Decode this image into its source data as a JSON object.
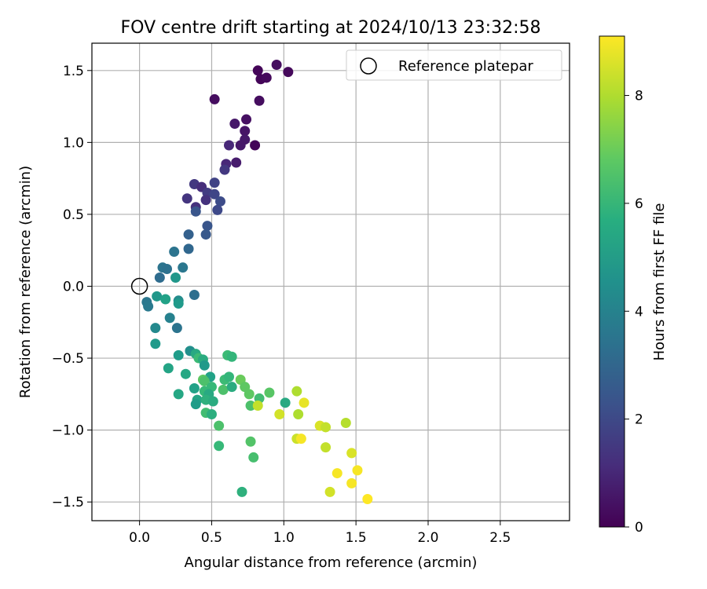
{
  "chart_data": {
    "type": "scatter",
    "title": "FOV centre drift starting at 2024/10/13 23:32:58",
    "xlabel": "Angular distance from reference (arcmin)",
    "ylabel": "Rotation from reference (arcmin)",
    "xlim": [
      -0.33,
      2.98
    ],
    "ylim": [
      -1.63,
      1.69
    ],
    "xticks": [
      0.0,
      0.5,
      1.0,
      1.5,
      2.0,
      2.5
    ],
    "xtick_labels": [
      "0.0",
      "0.5",
      "1.0",
      "1.5",
      "2.0",
      "2.5"
    ],
    "yticks": [
      -1.5,
      -1.0,
      -0.5,
      0.0,
      0.5,
      1.0,
      1.5
    ],
    "ytick_labels": [
      "−1.5",
      "−1.0",
      "−0.5",
      "0.0",
      "0.5",
      "1.0",
      "1.5"
    ],
    "grid": true,
    "legend": {
      "position": "top-right",
      "entries": [
        "Reference platepar"
      ]
    },
    "reference_point": {
      "x": 0.0,
      "y": 0.0,
      "marker": "open-circle"
    },
    "colorbar": {
      "label": "Hours from first FF file",
      "range": [
        0,
        9.1
      ],
      "ticks": [
        0,
        2,
        4,
        6,
        8
      ],
      "tick_labels": [
        "0",
        "2",
        "4",
        "6",
        "8"
      ],
      "colormap": "viridis"
    },
    "series": [
      {
        "points": [
          {
            "x": 0.82,
            "y": 1.5,
            "c": 0.1
          },
          {
            "x": 0.84,
            "y": 1.44,
            "c": 0.1
          },
          {
            "x": 0.88,
            "y": 1.45,
            "c": 0.2
          },
          {
            "x": 0.95,
            "y": 1.54,
            "c": 0.3
          },
          {
            "x": 1.03,
            "y": 1.49,
            "c": 0.2
          },
          {
            "x": 0.52,
            "y": 1.3,
            "c": 0.3
          },
          {
            "x": 0.83,
            "y": 1.29,
            "c": 0.3
          },
          {
            "x": 0.74,
            "y": 1.16,
            "c": 0.4
          },
          {
            "x": 0.66,
            "y": 1.13,
            "c": 0.6
          },
          {
            "x": 0.73,
            "y": 1.08,
            "c": 0.5
          },
          {
            "x": 0.73,
            "y": 1.02,
            "c": 0.6
          },
          {
            "x": 0.8,
            "y": 0.98,
            "c": 0.1
          },
          {
            "x": 0.7,
            "y": 0.98,
            "c": 0.6
          },
          {
            "x": 0.62,
            "y": 0.98,
            "c": 1.0
          },
          {
            "x": 0.6,
            "y": 0.85,
            "c": 1.0
          },
          {
            "x": 0.67,
            "y": 0.86,
            "c": 0.7
          },
          {
            "x": 0.59,
            "y": 0.81,
            "c": 1.5
          },
          {
            "x": 0.38,
            "y": 0.71,
            "c": 1.5
          },
          {
            "x": 0.43,
            "y": 0.69,
            "c": 1.2
          },
          {
            "x": 0.52,
            "y": 0.72,
            "c": 1.8
          },
          {
            "x": 0.47,
            "y": 0.65,
            "c": 1.6
          },
          {
            "x": 0.52,
            "y": 0.64,
            "c": 1.9
          },
          {
            "x": 0.56,
            "y": 0.59,
            "c": 2.1
          },
          {
            "x": 0.33,
            "y": 0.61,
            "c": 1.4
          },
          {
            "x": 0.46,
            "y": 0.6,
            "c": 1.3
          },
          {
            "x": 0.39,
            "y": 0.55,
            "c": 1.3
          },
          {
            "x": 0.39,
            "y": 0.52,
            "c": 2.4
          },
          {
            "x": 0.54,
            "y": 0.53,
            "c": 2.0
          },
          {
            "x": 0.47,
            "y": 0.42,
            "c": 2.4
          },
          {
            "x": 0.34,
            "y": 0.36,
            "c": 2.8
          },
          {
            "x": 0.46,
            "y": 0.36,
            "c": 2.5
          },
          {
            "x": 0.34,
            "y": 0.26,
            "c": 3.0
          },
          {
            "x": 0.24,
            "y": 0.24,
            "c": 3.5
          },
          {
            "x": 0.16,
            "y": 0.13,
            "c": 3.5
          },
          {
            "x": 0.19,
            "y": 0.12,
            "c": 3.4
          },
          {
            "x": 0.3,
            "y": 0.13,
            "c": 3.6
          },
          {
            "x": 0.14,
            "y": 0.06,
            "c": 3.2
          },
          {
            "x": 0.25,
            "y": 0.06,
            "c": 4.8
          },
          {
            "x": 0.38,
            "y": -0.06,
            "c": 3.3
          },
          {
            "x": 0.05,
            "y": -0.11,
            "c": 3.6
          },
          {
            "x": 0.06,
            "y": -0.14,
            "c": 3.7
          },
          {
            "x": 0.12,
            "y": -0.07,
            "c": 4.8
          },
          {
            "x": 0.18,
            "y": -0.09,
            "c": 5.2
          },
          {
            "x": 0.27,
            "y": -0.1,
            "c": 4.4
          },
          {
            "x": 0.27,
            "y": -0.12,
            "c": 4.9
          },
          {
            "x": 0.21,
            "y": -0.22,
            "c": 4.0
          },
          {
            "x": 0.26,
            "y": -0.29,
            "c": 3.5
          },
          {
            "x": 0.11,
            "y": -0.29,
            "c": 4.3
          },
          {
            "x": 0.11,
            "y": -0.4,
            "c": 4.9
          },
          {
            "x": 0.27,
            "y": -0.48,
            "c": 5.0
          },
          {
            "x": 0.35,
            "y": -0.45,
            "c": 4.5
          },
          {
            "x": 0.39,
            "y": -0.47,
            "c": 5.5
          },
          {
            "x": 0.41,
            "y": -0.5,
            "c": 6.2
          },
          {
            "x": 0.44,
            "y": -0.51,
            "c": 5.6
          },
          {
            "x": 0.45,
            "y": -0.55,
            "c": 4.9
          },
          {
            "x": 0.61,
            "y": -0.48,
            "c": 6.2
          },
          {
            "x": 0.64,
            "y": -0.49,
            "c": 6.0
          },
          {
            "x": 0.2,
            "y": -0.57,
            "c": 5.3
          },
          {
            "x": 0.32,
            "y": -0.61,
            "c": 5.4
          },
          {
            "x": 0.49,
            "y": -0.63,
            "c": 5.2
          },
          {
            "x": 0.44,
            "y": -0.65,
            "c": 6.8
          },
          {
            "x": 0.45,
            "y": -0.66,
            "c": 6.5
          },
          {
            "x": 0.59,
            "y": -0.65,
            "c": 6.2
          },
          {
            "x": 0.62,
            "y": -0.63,
            "c": 6.0
          },
          {
            "x": 0.7,
            "y": -0.65,
            "c": 7.0
          },
          {
            "x": 0.38,
            "y": -0.71,
            "c": 5.2
          },
          {
            "x": 0.45,
            "y": -0.73,
            "c": 6.1
          },
          {
            "x": 0.5,
            "y": -0.7,
            "c": 6.1
          },
          {
            "x": 0.48,
            "y": -0.75,
            "c": 5.5
          },
          {
            "x": 0.58,
            "y": -0.72,
            "c": 6.5
          },
          {
            "x": 0.64,
            "y": -0.7,
            "c": 5.6
          },
          {
            "x": 0.73,
            "y": -0.7,
            "c": 6.8
          },
          {
            "x": 0.27,
            "y": -0.75,
            "c": 5.4
          },
          {
            "x": 0.4,
            "y": -0.79,
            "c": 5.3
          },
          {
            "x": 0.39,
            "y": -0.82,
            "c": 5.0
          },
          {
            "x": 0.46,
            "y": -0.79,
            "c": 5.8
          },
          {
            "x": 0.51,
            "y": -0.8,
            "c": 5.6
          },
          {
            "x": 0.76,
            "y": -0.75,
            "c": 6.8
          },
          {
            "x": 0.83,
            "y": -0.78,
            "c": 6.3
          },
          {
            "x": 0.9,
            "y": -0.74,
            "c": 6.7
          },
          {
            "x": 0.77,
            "y": -0.83,
            "c": 6.5
          },
          {
            "x": 0.82,
            "y": -0.83,
            "c": 8.3
          },
          {
            "x": 0.46,
            "y": -0.88,
            "c": 6.3
          },
          {
            "x": 0.5,
            "y": -0.89,
            "c": 5.7
          },
          {
            "x": 0.55,
            "y": -0.97,
            "c": 6.5
          },
          {
            "x": 0.97,
            "y": -0.89,
            "c": 8.5
          },
          {
            "x": 1.01,
            "y": -0.81,
            "c": 5.5
          },
          {
            "x": 1.09,
            "y": -0.73,
            "c": 8.0
          },
          {
            "x": 1.1,
            "y": -0.89,
            "c": 8.0
          },
          {
            "x": 1.14,
            "y": -0.81,
            "c": 8.8
          },
          {
            "x": 0.55,
            "y": -1.11,
            "c": 6.1
          },
          {
            "x": 0.77,
            "y": -1.08,
            "c": 6.6
          },
          {
            "x": 0.79,
            "y": -1.19,
            "c": 6.4
          },
          {
            "x": 1.09,
            "y": -1.06,
            "c": 8.4
          },
          {
            "x": 1.12,
            "y": -1.06,
            "c": 9.0
          },
          {
            "x": 1.25,
            "y": -0.97,
            "c": 8.6
          },
          {
            "x": 1.29,
            "y": -0.98,
            "c": 8.3
          },
          {
            "x": 1.29,
            "y": -1.12,
            "c": 8.3
          },
          {
            "x": 1.43,
            "y": -0.95,
            "c": 8.1
          },
          {
            "x": 1.47,
            "y": -1.16,
            "c": 8.6
          },
          {
            "x": 1.37,
            "y": -1.3,
            "c": 9.0
          },
          {
            "x": 1.51,
            "y": -1.28,
            "c": 9.0
          },
          {
            "x": 1.47,
            "y": -1.37,
            "c": 9.0
          },
          {
            "x": 1.32,
            "y": -1.43,
            "c": 8.5
          },
          {
            "x": 1.58,
            "y": -1.48,
            "c": 9.1
          },
          {
            "x": 0.71,
            "y": -1.43,
            "c": 5.8
          }
        ]
      }
    ]
  }
}
